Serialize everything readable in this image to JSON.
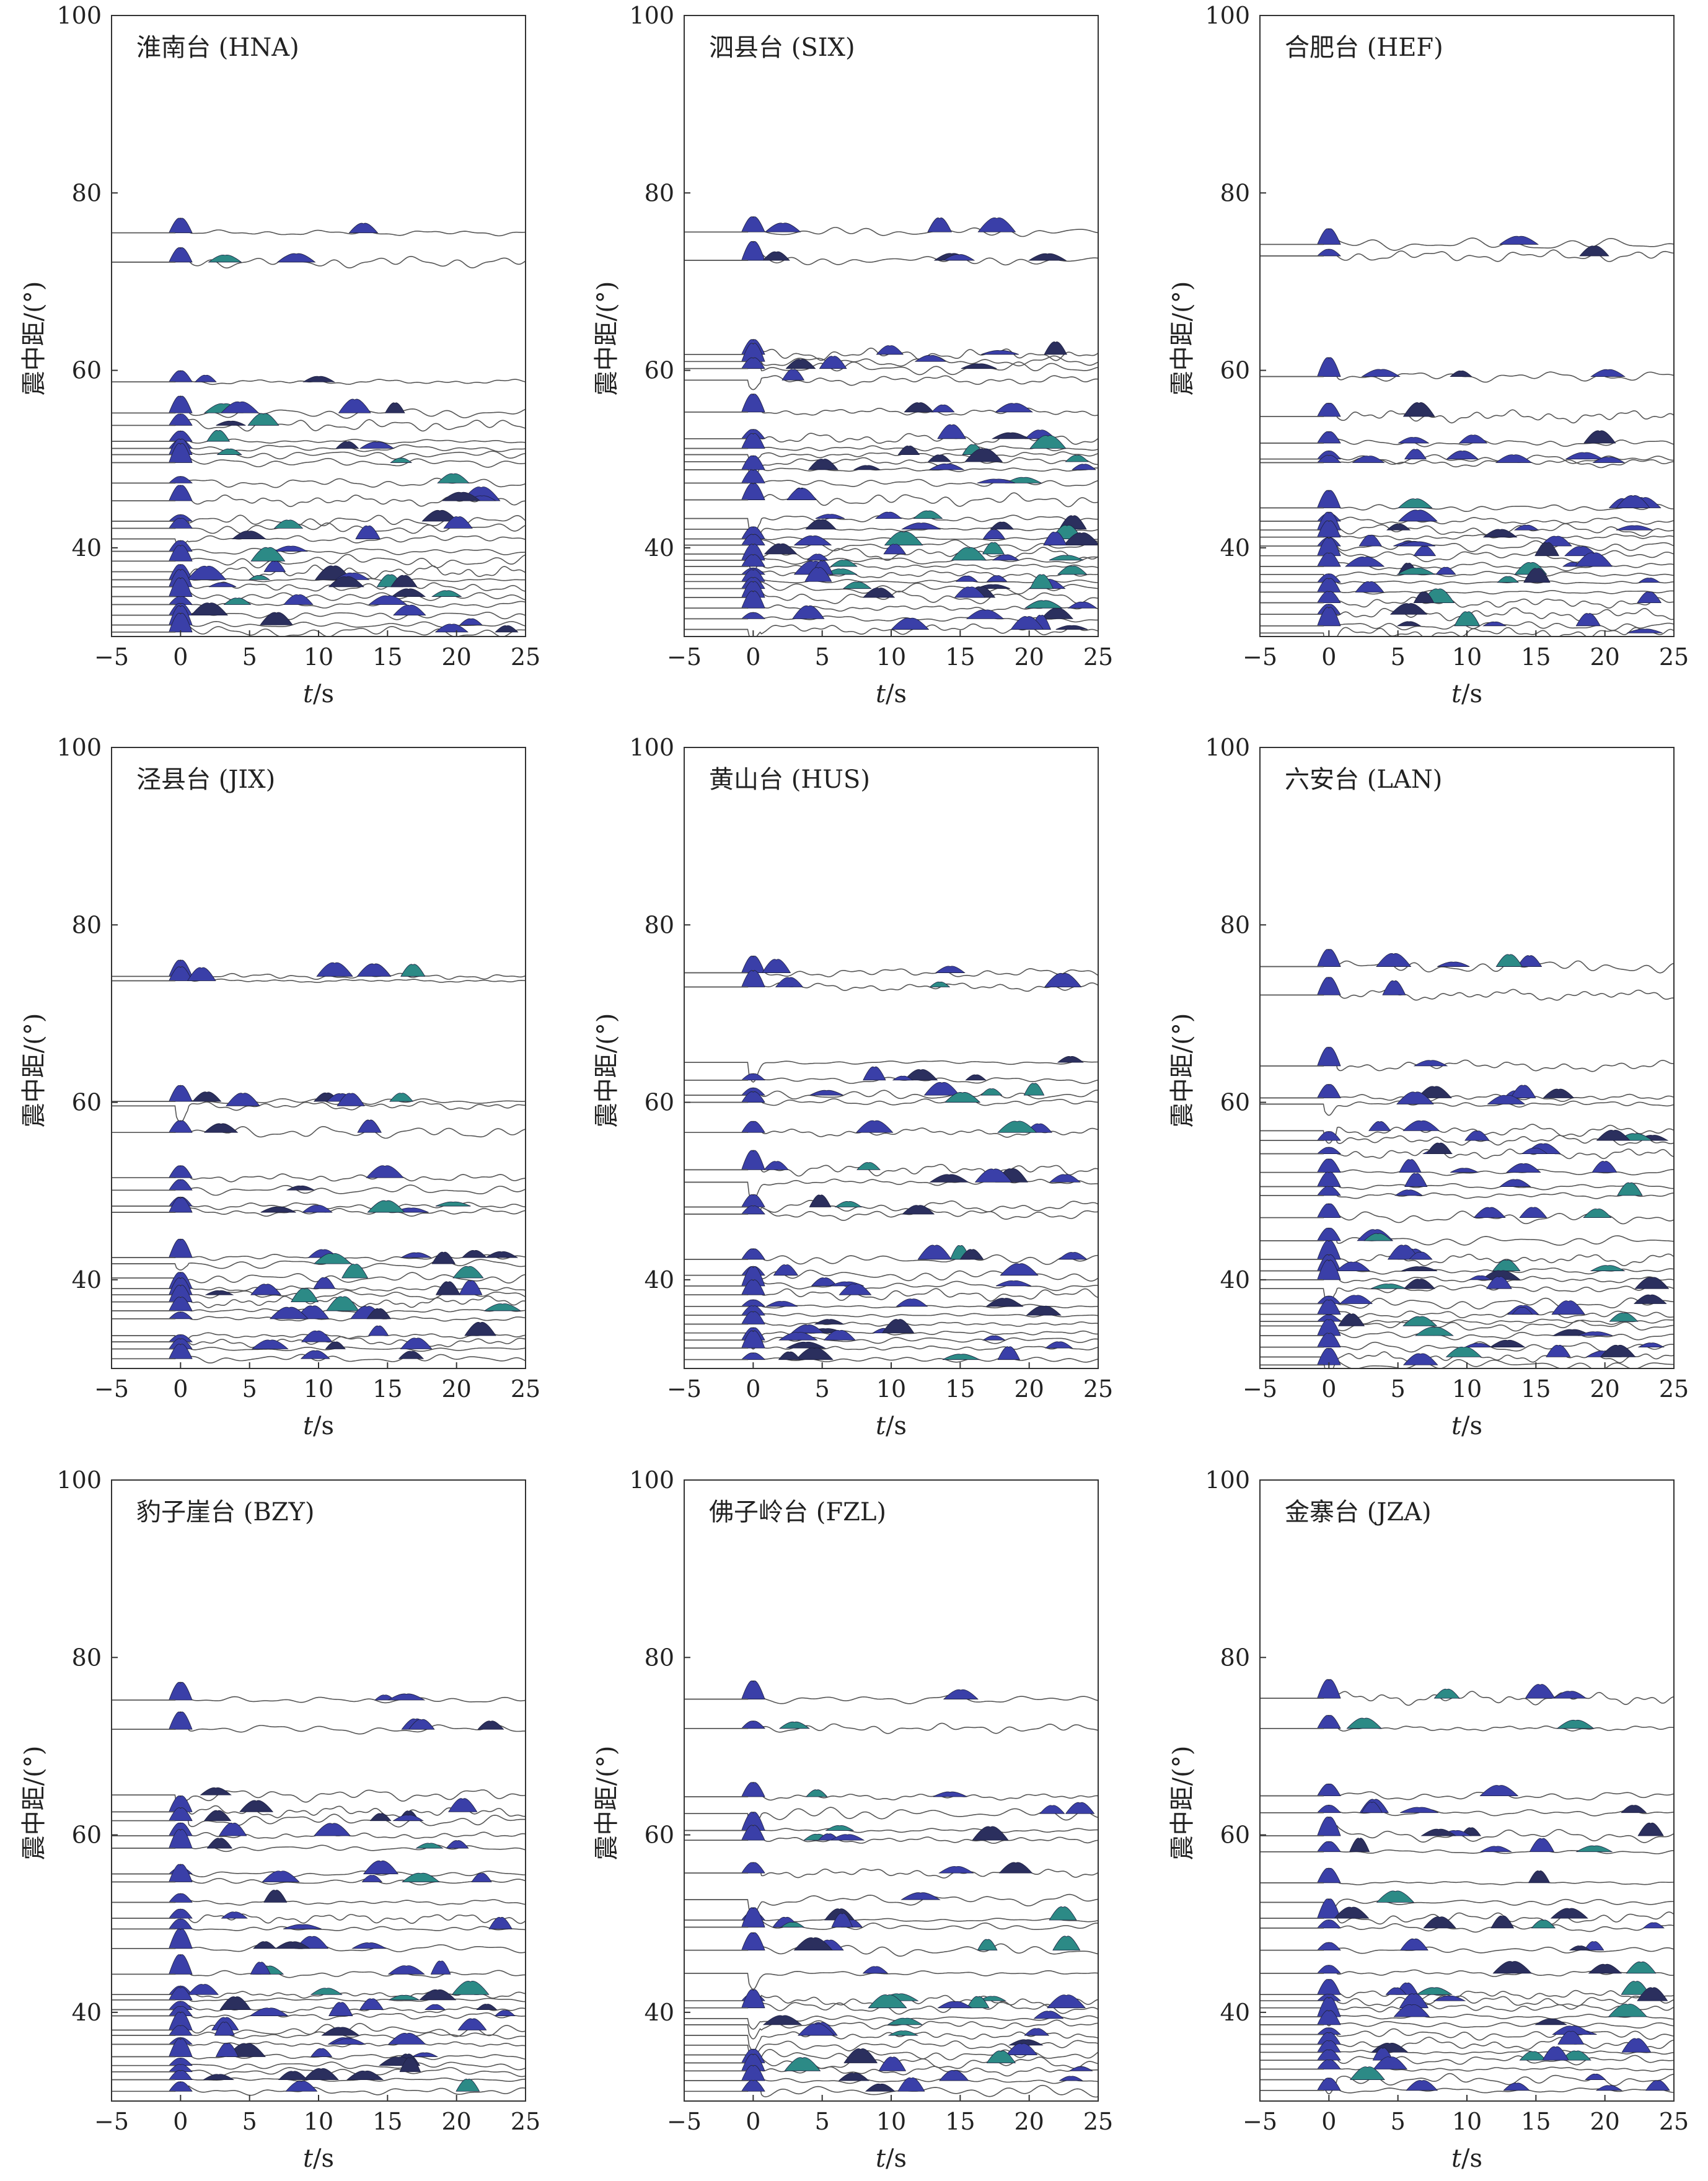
{
  "figure": {
    "xlabel_var": "t",
    "xlabel_unit": "/s",
    "ylabel": "震中距/(°)",
    "xlim": [
      -5,
      25
    ],
    "ylim": [
      30,
      100
    ],
    "xticks": [
      -5,
      0,
      5,
      10,
      15,
      20,
      25
    ],
    "yticks": [
      40,
      60,
      80,
      100
    ]
  },
  "colors": {
    "trace": "#555555",
    "frame": "#333333",
    "peak_blue": "#3a3fa8",
    "peak_teal": "#2c8a86",
    "peak_dark": "#2b2f5e"
  },
  "chart_data": [
    {
      "type": "line",
      "title": "淮南台 (HNA)",
      "xlim": [
        -5,
        25
      ],
      "ylim": [
        30,
        100
      ],
      "distances": [
        75.5,
        72.2,
        58.7,
        55.2,
        53.8,
        52.0,
        51.2,
        50.5,
        49.6,
        47.3,
        45.3,
        43.0,
        42.2,
        41.0,
        39.6,
        38.5,
        37.3,
        36.4,
        35.6,
        34.5,
        33.6,
        32.4,
        31.3,
        30.5
      ]
    },
    {
      "type": "line",
      "title": "泗县台 (SIX)",
      "xlim": [
        -5,
        25
      ],
      "ylim": [
        30,
        100
      ],
      "distances": [
        75.6,
        72.4,
        61.8,
        61.0,
        60.2,
        58.9,
        55.3,
        52.3,
        51.2,
        50.5,
        49.7,
        48.8,
        47.3,
        45.4,
        43.3,
        42.1,
        41.0,
        40.3,
        39.3,
        38.6,
        37.9,
        37.0,
        36.2,
        35.4,
        34.4,
        33.2,
        32.0,
        30.8
      ]
    },
    {
      "type": "line",
      "title": "合肥台 (HEF)",
      "xlim": [
        -5,
        25
      ],
      "ylim": [
        30,
        100
      ],
      "distances": [
        74.2,
        72.9,
        59.3,
        54.8,
        51.8,
        50.0,
        49.6,
        44.5,
        43.0,
        42.0,
        41.2,
        40.2,
        39.1,
        37.9,
        37.0,
        36.1,
        35.0,
        33.8,
        32.5,
        31.2,
        30.4
      ]
    },
    {
      "type": "line",
      "title": "泾县台 (JIX)",
      "xlim": [
        -5,
        25
      ],
      "ylim": [
        30,
        100
      ],
      "distances": [
        74.2,
        73.7,
        60.1,
        59.6,
        56.6,
        51.5,
        50.1,
        48.3,
        47.6,
        42.5,
        41.8,
        40.2,
        39.0,
        38.3,
        37.5,
        36.5,
        35.6,
        33.7,
        33.0,
        32.2,
        31.1
      ]
    },
    {
      "type": "line",
      "title": "黄山台 (HUS)",
      "xlim": [
        -5,
        25
      ],
      "ylim": [
        30,
        100
      ],
      "distances": [
        74.6,
        73.0,
        64.5,
        62.5,
        60.8,
        60.0,
        56.6,
        52.4,
        51.0,
        48.2,
        47.4,
        42.3,
        40.5,
        39.3,
        38.3,
        37.0,
        36.0,
        35.0,
        34.0,
        33.2,
        32.3,
        31.0
      ]
    },
    {
      "type": "line",
      "title": "六安台 (LAN)",
      "xlim": [
        -5,
        25
      ],
      "ylim": [
        30,
        100
      ],
      "distances": [
        75.3,
        72.1,
        64.1,
        60.5,
        59.8,
        56.8,
        55.7,
        54.2,
        52.1,
        50.5,
        49.5,
        47.0,
        44.4,
        42.3,
        41.0,
        40.0,
        39.0,
        37.3,
        36.1,
        35.3,
        34.8,
        33.7,
        32.4,
        31.3,
        30.4
      ]
    },
    {
      "type": "line",
      "title": "豹子崖台 (BZY)",
      "xlim": [
        -5,
        25
      ],
      "ylim": [
        30,
        100
      ],
      "distances": [
        75.2,
        71.9,
        64.5,
        62.6,
        61.6,
        59.9,
        58.5,
        55.6,
        54.7,
        52.4,
        50.6,
        49.4,
        47.2,
        44.3,
        42.0,
        41.4,
        40.3,
        39.6,
        38.0,
        37.4,
        36.4,
        35.0,
        34.0,
        33.3,
        32.4,
        31.1
      ]
    },
    {
      "type": "line",
      "title": "佛子岭台 (FZL)",
      "xlim": [
        -5,
        25
      ],
      "ylim": [
        30,
        100
      ],
      "distances": [
        75.3,
        72.0,
        64.3,
        62.4,
        60.5,
        59.4,
        55.7,
        52.7,
        50.4,
        49.6,
        47.0,
        44.4,
        41.3,
        40.5,
        39.3,
        38.6,
        37.4,
        36.3,
        35.2,
        34.3,
        33.4,
        32.3,
        31.1
      ]
    },
    {
      "type": "line",
      "title": "金寨台 (JZA)",
      "xlim": [
        -5,
        25
      ],
      "ylim": [
        30,
        100
      ],
      "distances": [
        75.4,
        72.0,
        64.4,
        62.5,
        59.9,
        58.1,
        54.6,
        52.4,
        50.6,
        49.5,
        47.0,
        44.4,
        42.0,
        41.3,
        40.5,
        39.5,
        38.6,
        37.5,
        36.4,
        35.5,
        34.6,
        33.6,
        32.4,
        31.2
      ]
    }
  ]
}
